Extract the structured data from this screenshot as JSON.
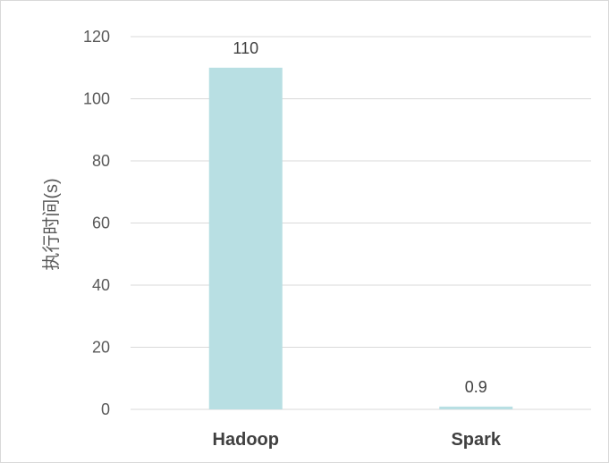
{
  "chart_data": {
    "type": "bar",
    "categories": [
      "Hadoop",
      "Spark"
    ],
    "values": [
      110,
      0.9
    ],
    "data_labels": [
      "110",
      "0.9"
    ],
    "ylabel": "执行时间(s)",
    "xlabel": "",
    "ylim": [
      0,
      120
    ],
    "yticks": [
      0,
      20,
      40,
      60,
      80,
      100,
      120
    ],
    "grid": true,
    "legend": "none",
    "bar_color": "#b8dfe3"
  }
}
